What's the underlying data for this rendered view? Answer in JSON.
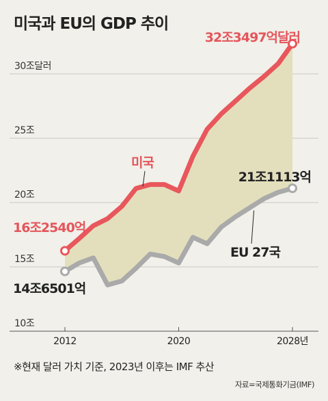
{
  "chart_data": {
    "type": "area",
    "title": "미국과 EU의 GDP 추이",
    "y_tick_labels": [
      "10조",
      "15조",
      "20조",
      "25조",
      "30조달러"
    ],
    "y_ticks": [
      10,
      15,
      20,
      25,
      30
    ],
    "ylim": [
      10,
      33
    ],
    "x_tick_labels": [
      "2012",
      "2020",
      "2028년"
    ],
    "x_ticks": [
      2012,
      2020,
      2028
    ],
    "xlim": [
      2012,
      2028
    ],
    "grid": true,
    "series": [
      {
        "name": "미국",
        "color": "#e8575c",
        "x": [
          2012,
          2013,
          2014,
          2015,
          2016,
          2017,
          2018,
          2019,
          2020,
          2021,
          2022,
          2023,
          2024,
          2025,
          2026,
          2027,
          2028
        ],
        "values": [
          16.25,
          17.2,
          18.2,
          18.75,
          19.7,
          21.1,
          21.4,
          21.4,
          20.9,
          23.6,
          25.7,
          26.9,
          27.9,
          28.9,
          29.8,
          30.8,
          32.35
        ]
      },
      {
        "name": "EU 27국",
        "color": "#a9aaa9",
        "x": [
          2012,
          2013,
          2014,
          2015,
          2016,
          2017,
          2018,
          2019,
          2020,
          2021,
          2022,
          2023,
          2024,
          2025,
          2026,
          2027,
          2028
        ],
        "values": [
          14.65,
          15.3,
          15.7,
          13.6,
          13.9,
          14.9,
          16.0,
          15.8,
          15.3,
          17.3,
          16.8,
          18.1,
          18.9,
          19.6,
          20.3,
          20.8,
          21.11
        ]
      }
    ],
    "annotations": {
      "us_series_label": "미국",
      "eu_series_label": "EU 27국",
      "us_start": "16조2540억",
      "us_end": "32조3497억달러",
      "eu_start": "14조6501억",
      "eu_end": "21조1113억"
    },
    "area_fill_color": "#e3dfbd",
    "gridline_color": "#c9c9c2"
  },
  "footnote": "※현재 달러 가치 기준, 2023년 이후는 IMF 추산",
  "source": "자료=국제통화기금(IMF)"
}
